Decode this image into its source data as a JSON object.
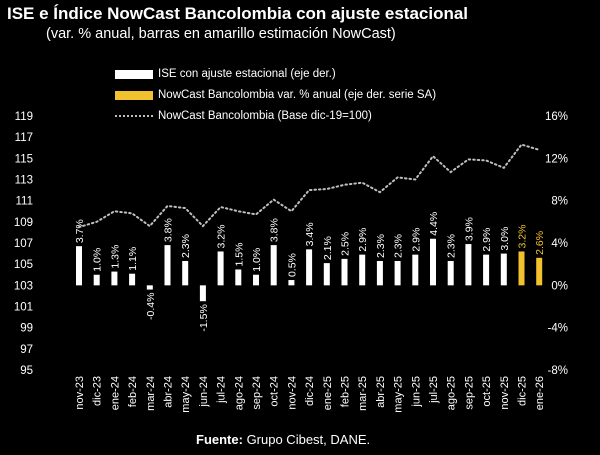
{
  "title": "ISE e Índice NowCast Bancolombia con ajuste estacional",
  "subtitle": "(var. % anual, barras en amarillo estimación NowCast)",
  "legend": {
    "ise": "ISE con ajuste estacional  (eje der.)",
    "nowcast_var": "NowCast Bancolombia var. % anual (eje der. serie SA)",
    "nowcast_index": "NowCast Bancolombia (Base dic-19=100)"
  },
  "source": {
    "label": "Fuente:",
    "text": " Grupo Cibest, DANE."
  },
  "colors": {
    "white_bar": "#ffffff",
    "yellow_bar": "#f2c12e",
    "dots": "#bfbfbf",
    "background": "#000000"
  },
  "chart_data": {
    "type": "bar",
    "categories": [
      "nov-23",
      "dic-23",
      "ene-24",
      "feb-24",
      "mar-24",
      "abr-24",
      "may-24",
      "jun-24",
      "jul-24",
      "ago-24",
      "sep-24",
      "oct-24",
      "nov-24",
      "dic-24",
      "ene-25",
      "feb-25",
      "mar-25",
      "abr-25",
      "may-25",
      "jun-25",
      "jul-25",
      "ago-25",
      "sep-25",
      "oct-25",
      "nov-25",
      "dic-25",
      "ene-26"
    ],
    "series": [
      {
        "name": "ISE con ajuste estacional  (eje der.)",
        "axis": "right",
        "values": [
          3.7,
          1.0,
          1.3,
          1.1,
          -0.4,
          3.8,
          2.3,
          -1.5,
          3.2,
          1.5,
          1.0,
          3.8,
          0.5,
          3.4,
          2.1,
          2.5,
          2.9,
          2.3,
          2.3,
          2.9,
          4.4,
          2.3,
          3.9,
          2.9,
          3.0,
          null,
          null
        ],
        "labels": [
          "3.7%",
          "1.0%",
          "1.3%",
          "1.1%",
          "-0.4%",
          "3.8%",
          "2.3%",
          "-1.5%",
          "3.2%",
          "1.5%",
          "1.0%",
          "3.8%",
          "0.5%",
          "3.4%",
          "2.1%",
          "2.5%",
          "2.9%",
          "2.3%",
          "2.3%",
          "2.9%",
          "4.4%",
          "2.3%",
          "3.9%",
          "2.9%",
          "3.0%",
          "",
          ""
        ]
      },
      {
        "name": "NowCast Bancolombia var. % anual (eje der. serie SA)",
        "axis": "right",
        "values": [
          null,
          null,
          null,
          null,
          null,
          null,
          null,
          null,
          null,
          null,
          null,
          null,
          null,
          null,
          null,
          null,
          null,
          null,
          null,
          null,
          null,
          null,
          null,
          null,
          null,
          3.2,
          2.6
        ],
        "labels": [
          "",
          "",
          "",
          "",
          "",
          "",
          "",
          "",
          "",
          "",
          "",
          "",
          "",
          "",
          "",
          "",
          "",
          "",
          "",
          "",
          "",
          "",
          "",
          "",
          "",
          "3.2%",
          "2.6%"
        ]
      },
      {
        "name": "NowCast Bancolombia (Base dic-19=100)",
        "axis": "left",
        "type": "line",
        "values": [
          108.5,
          109.0,
          110.0,
          109.8,
          108.6,
          110.5,
          110.3,
          108.6,
          110.4,
          110.0,
          109.7,
          111.1,
          110.0,
          112.0,
          112.1,
          112.5,
          112.7,
          111.8,
          113.2,
          113.0,
          115.2,
          113.7,
          114.9,
          114.8,
          114.1,
          116.3,
          115.8
        ]
      }
    ],
    "y_left": {
      "min": 95,
      "max": 119,
      "ticks": [
        "95",
        "97",
        "99",
        "101",
        "103",
        "105",
        "107",
        "109",
        "111",
        "113",
        "115",
        "117",
        "119"
      ]
    },
    "y_right": {
      "min": -8,
      "max": 16,
      "ticks": [
        "-8%",
        "-4%",
        "0%",
        "4%",
        "8%",
        "12%",
        "16%"
      ]
    },
    "grid": false
  }
}
